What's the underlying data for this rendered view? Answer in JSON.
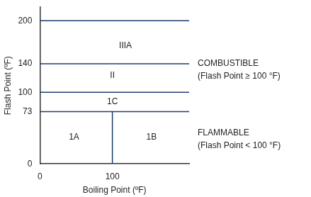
{
  "chart_data": {
    "type": "line",
    "x_label": "Boiling Point (ºF)",
    "y_label": "Flash Point (ºF)",
    "xlim": [
      0,
      206
    ],
    "ylim": [
      0,
      219
    ],
    "xticks": [
      0,
      100
    ],
    "yticks": [
      0,
      73,
      100,
      140,
      200
    ],
    "grid": false,
    "series": [
      {
        "color": "#1f3c6e",
        "x": [
          0,
          206
        ],
        "values": [
          200,
          200
        ]
      },
      {
        "color": "#1f3c6e",
        "x": [
          0,
          206
        ],
        "values": [
          140,
          140
        ]
      },
      {
        "color": "#1f3c6e",
        "x": [
          0,
          206
        ],
        "values": [
          100,
          100
        ]
      },
      {
        "color": "#1f3c6e",
        "x": [
          0,
          206
        ],
        "values": [
          73,
          73
        ]
      },
      {
        "color": "#1f3c6e",
        "x": [
          100,
          100
        ],
        "values": [
          0,
          73
        ]
      }
    ],
    "annotations": [
      {
        "text": "IIIA",
        "x": 118,
        "y": 165
      },
      {
        "text": "II",
        "x": 100,
        "y": 123
      },
      {
        "text": "1C",
        "x": 100,
        "y": 87
      },
      {
        "text": "1A",
        "x": 47,
        "y": 37
      },
      {
        "text": "1B",
        "x": 154,
        "y": 37
      }
    ],
    "side_notes": [
      {
        "text": "COMBUSTIBLE",
        "y": 140
      },
      {
        "text": "(Flash Point ≥ 100 °F)",
        "y": 122
      },
      {
        "text": "FLAMMABLE",
        "y": 43
      },
      {
        "text": "(Flash Point < 100 °F)",
        "y": 25
      }
    ]
  }
}
